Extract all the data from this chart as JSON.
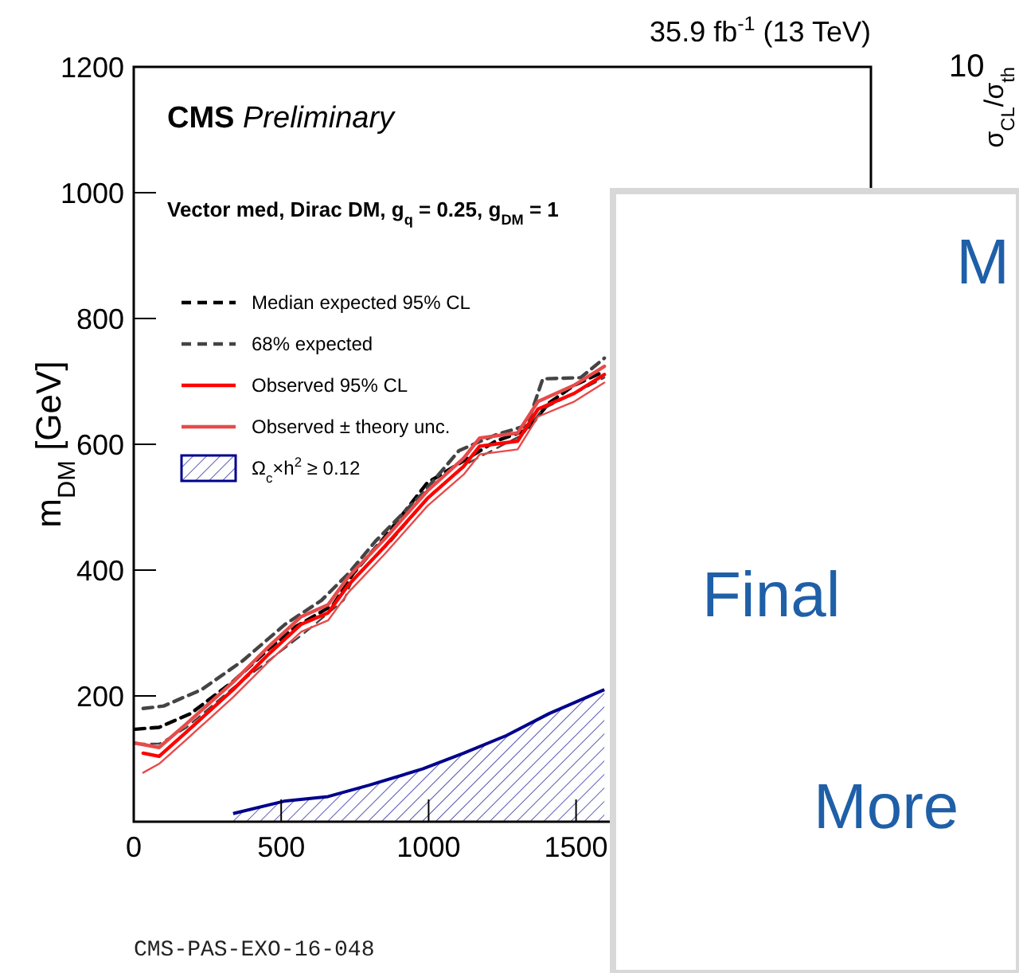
{
  "chart_data": {
    "type": "line",
    "title": "35.9 fb$^{-1}$ (13 TeV)",
    "ylabel": "m$_{DM}$ [GeV]",
    "annotations": [
      "CMS Preliminary",
      "Vector med, Dirac DM, g$_{q}$ = 0.25, g$_{DM}$ = 1",
      "CMS-PAS-EXO-16-048",
      "10",
      "σ$_{CL}$/σ$_{th}$",
      "M",
      "Final",
      "More"
    ],
    "xlim": [
      0,
      2500
    ],
    "xticks": [
      0,
      500,
      1000,
      1500
    ],
    "ylim": [
      0,
      1200
    ],
    "yticks": [
      {
        "value": 0,
        "label": null
      },
      200,
      400,
      600,
      800,
      1000,
      1200
    ],
    "legend": "top left",
    "series": [
      {
        "name": "Median expected 95% CL",
        "color": "#000000",
        "line_style": "dashed",
        "x": [
          5,
          86,
          193,
          337,
          461,
          552,
          675,
          745,
          852,
          996,
          1141,
          1227,
          1334,
          1409,
          1494,
          1596
        ],
        "values": [
          147,
          150,
          172,
          223,
          276,
          311,
          344,
          395,
          453,
          539,
          580,
          605,
          623,
          666,
          694,
          716
        ]
      },
      {
        "name": "68% expected",
        "color": "#444444",
        "line_style": "dashed",
        "x": [
          32,
          102,
          230,
          370,
          514,
          637,
          729,
          820,
          980,
          1103,
          1227,
          1334,
          1387,
          1516,
          1596
        ],
        "values": [
          180,
          184,
          210,
          256,
          314,
          352,
          395,
          446,
          522,
          590,
          615,
          630,
          704,
          706,
          737
        ]
      },
      {
        "color": "#444444",
        "line_style": "dashed",
        "x": [
          5,
          86,
          177,
          337,
          477,
          584,
          712,
          745,
          873,
          1012,
          1141,
          1318,
          1387,
          1516,
          1596
        ],
        "values": [
          124,
          124,
          149,
          213,
          263,
          302,
          352,
          387,
          446,
          522,
          572,
          615,
          656,
          686,
          706
        ]
      },
      {
        "name": "Observed 95% CL",
        "color": "#ff0000",
        "line_style": "solid",
        "x": [
          32,
          86,
          177,
          337,
          461,
          568,
          659,
          729,
          852,
          996,
          1119,
          1173,
          1302,
          1371,
          1494,
          1596
        ],
        "values": [
          109,
          104,
          142,
          210,
          268,
          314,
          332,
          377,
          438,
          514,
          565,
          597,
          605,
          656,
          681,
          711
        ]
      },
      {
        "name": "Observed ± theory unc.",
        "color": "#e84a4a",
        "line_style": "solid",
        "x": [
          5,
          86,
          177,
          337,
          461,
          568,
          659,
          729,
          852,
          996,
          1119,
          1173,
          1302,
          1371,
          1494,
          1596
        ],
        "values": [
          125,
          118,
          155,
          222,
          280,
          326,
          345,
          390,
          450,
          526,
          578,
          610,
          618,
          668,
          694,
          724
        ]
      },
      {
        "color": "#e84a4a",
        "line_style": "solid",
        "x": [
          32,
          86,
          177,
          337,
          461,
          568,
          659,
          729,
          852,
          996,
          1119,
          1173,
          1302,
          1371,
          1494,
          1596
        ],
        "values": [
          78,
          92,
          130,
          198,
          256,
          302,
          320,
          365,
          426,
          502,
          552,
          584,
          592,
          644,
          668,
          698
        ]
      },
      {
        "name": "Ω$_{c}$×h$^{2}$ ≥ 0.12",
        "type": "area",
        "color": "#00008b",
        "line_style": "solid",
        "x": [
          337,
          514,
          659,
          798,
          980,
          1119,
          1264,
          1409,
          1596
        ],
        "values": [
          13,
          33,
          40,
          58,
          84,
          109,
          137,
          172,
          210
        ]
      }
    ]
  }
}
